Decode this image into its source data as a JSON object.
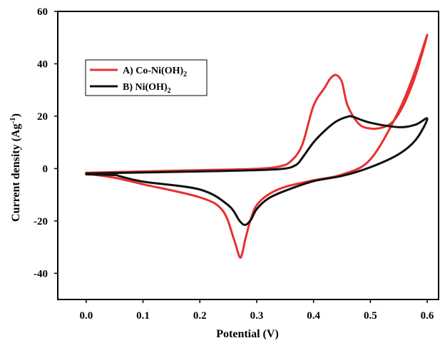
{
  "chart_data": {
    "type": "line",
    "xlabel": "Potential (V)",
    "ylabel": "Current density (Ag",
    "ylabel_sup": "-1",
    "ylabel_tail": ")",
    "xlim": [
      -0.05,
      0.62
    ],
    "ylim": [
      -50,
      60
    ],
    "xticks": [
      0.0,
      0.1,
      0.2,
      0.3,
      0.4,
      0.5,
      0.6
    ],
    "xtick_labels": [
      "0.0",
      "0.1",
      "0.2",
      "0.3",
      "0.4",
      "0.5",
      "0.6"
    ],
    "yticks": [
      -40,
      -20,
      0,
      20,
      40,
      60
    ],
    "ytick_labels": [
      "-40",
      "-20",
      "0",
      "20",
      "40",
      "60"
    ],
    "grid": false,
    "legend": {
      "placement": "top-left"
    },
    "series": [
      {
        "name": "A) Co-Ni(OH)",
        "name_sub": "2",
        "color": "#e8302f",
        "x": [
          0.0,
          0.1,
          0.2,
          0.3,
          0.34,
          0.36,
          0.38,
          0.4,
          0.42,
          0.43,
          0.44,
          0.45,
          0.46,
          0.48,
          0.5,
          0.52,
          0.54,
          0.56,
          0.58,
          0.6,
          0.58,
          0.55,
          0.5,
          0.45,
          0.4,
          0.35,
          0.32,
          0.3,
          0.29,
          0.28,
          0.275,
          0.27,
          0.26,
          0.24,
          0.2,
          0.1,
          0.05,
          0.0
        ],
        "y": [
          -1.6,
          -1.1,
          -0.6,
          -0.1,
          0.8,
          2.8,
          9.0,
          24.0,
          31.0,
          34.5,
          35.7,
          33.0,
          24.0,
          17.0,
          15.3,
          15.6,
          18.0,
          25.0,
          36.0,
          51.0,
          38.0,
          22.0,
          3.5,
          -2.3,
          -4.5,
          -7.0,
          -10.0,
          -14.0,
          -19.0,
          -27.0,
          -32.0,
          -33.8,
          -27.0,
          -16.0,
          -11.0,
          -6.0,
          -3.5,
          -2.0
        ]
      },
      {
        "name": "B) Ni(OH)",
        "name_sub": "2",
        "color": "#111111",
        "x": [
          0.0,
          0.1,
          0.2,
          0.3,
          0.35,
          0.37,
          0.38,
          0.4,
          0.42,
          0.44,
          0.46,
          0.47,
          0.5,
          0.55,
          0.58,
          0.6,
          0.58,
          0.55,
          0.5,
          0.45,
          0.4,
          0.35,
          0.32,
          0.3,
          0.29,
          0.28,
          0.27,
          0.25,
          0.2,
          0.1,
          0.06,
          0.05,
          0.0
        ],
        "y": [
          -1.9,
          -1.5,
          -1.1,
          -0.6,
          0.0,
          1.5,
          4.0,
          10.0,
          14.5,
          18.0,
          19.8,
          19.7,
          17.5,
          15.8,
          16.8,
          19.0,
          11.0,
          5.5,
          0.5,
          -2.8,
          -4.8,
          -8.5,
          -11.5,
          -15.5,
          -19.5,
          -21.5,
          -20.0,
          -14.0,
          -8.0,
          -5.0,
          -3.0,
          -2.5,
          -2.2
        ]
      }
    ]
  }
}
